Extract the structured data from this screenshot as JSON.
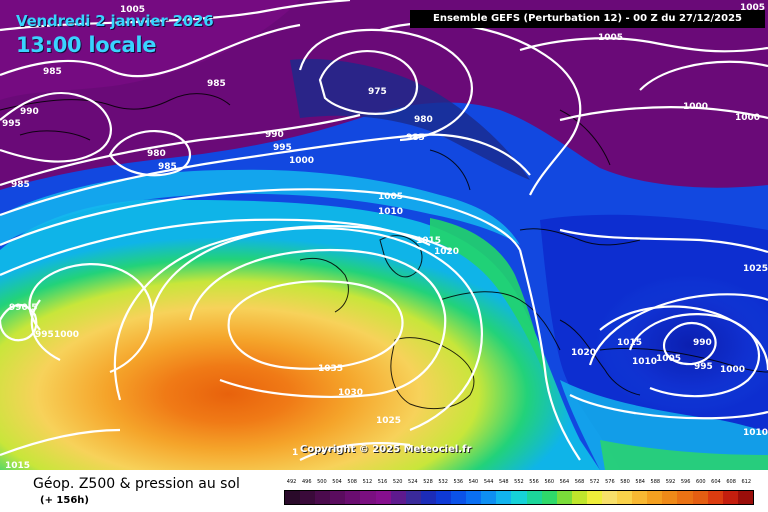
{
  "header": {
    "date": "Vendredi 2 janvier 2026",
    "local_time": "13:00 locale",
    "run_info": "Ensemble GEFS  (Perturbation 12)  -  00 Z du 27/12/2025"
  },
  "map": {
    "copyright": "Copyright © 2025 Meteociel.fr",
    "isobar_labels": [
      "1005",
      "1005",
      "1005",
      "985",
      "985",
      "990",
      "995",
      "985",
      "980",
      "985",
      "975",
      "980",
      "985",
      "990",
      "995",
      "1000",
      "1000",
      "1000",
      "1005",
      "1010",
      "1015",
      "1020",
      "1025",
      "990.5",
      "995",
      "1000",
      "1035",
      "1030",
      "1025",
      "1020",
      "1015",
      "1010",
      "1005",
      "990",
      "995",
      "1000",
      "1010",
      "1015",
      "1"
    ],
    "colors": {
      "low_geopotential": "#6a0a78",
      "trough": "#0b2fc8",
      "mid": "#1fd36a",
      "ridge": "#f29a1c",
      "high_core": "#e8660e",
      "isobar": "#ffffff",
      "coastline": "#000000"
    }
  },
  "footer": {
    "product": "Géop. Z500 & pression au sol",
    "lead": "(+ 156h)",
    "scale_ticks": [
      "492",
      "496",
      "500",
      "504",
      "508",
      "512",
      "516",
      "520",
      "524",
      "528",
      "532",
      "536",
      "540",
      "544",
      "548",
      "552",
      "556",
      "560",
      "564",
      "568",
      "572",
      "576",
      "580",
      "584",
      "588",
      "592",
      "596",
      "600",
      "604",
      "608",
      "612"
    ],
    "scale_colors": [
      "#2a0a2a",
      "#3a0a3a",
      "#4b0b4d",
      "#5a0c5e",
      "#6a0d70",
      "#7a0f80",
      "#860f8e",
      "#5e1a8e",
      "#3a2a9a",
      "#1c2cb8",
      "#0f3ad6",
      "#0b52e8",
      "#0a6ff2",
      "#0e8ff2",
      "#12b4ee",
      "#16d2d8",
      "#1cd69a",
      "#2fd96a",
      "#7add3a",
      "#bfe62c",
      "#efee3a",
      "#f8e06a",
      "#fad24a",
      "#f8b832",
      "#f4a020",
      "#ef8a18",
      "#ea7214",
      "#e45e12",
      "#dc3c10",
      "#c41e0e",
      "#9a0e0a"
    ]
  }
}
